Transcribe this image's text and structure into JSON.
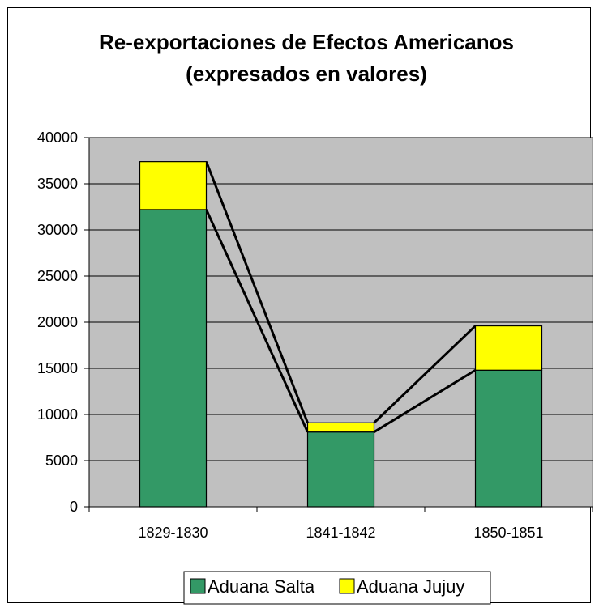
{
  "chart_data": {
    "type": "bar",
    "stacked": true,
    "title_lines": [
      "Re-exportaciones de Efectos Americanos",
      "(expresados en valores)"
    ],
    "categories": [
      "1829-1830",
      "1841-1842",
      "1850-1851"
    ],
    "series": [
      {
        "name": "Aduana Salta",
        "values": [
          32200,
          8100,
          14800
        ],
        "color": "#339966"
      },
      {
        "name": "Aduana Jujuy",
        "values": [
          5200,
          1000,
          4800
        ],
        "color": "#ffff00"
      }
    ],
    "ylim": [
      0,
      40000
    ],
    "yticks": [
      0,
      5000,
      10000,
      15000,
      20000,
      25000,
      30000,
      35000,
      40000
    ],
    "plot_background": "#c0c0c0",
    "grid": true,
    "series_lines": true,
    "legend_position": "bottom"
  }
}
